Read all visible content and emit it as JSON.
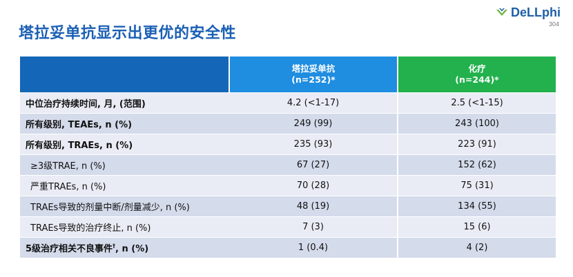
{
  "page": {
    "title": "塔拉妥单抗显示出更优的安全性",
    "logo_text": "DeLLphi",
    "page_number": "304"
  },
  "table": {
    "header": {
      "col1": "",
      "col2_name": "塔拉妥单抗",
      "col2_n": "(n=252)*",
      "col3_name": "化疗",
      "col3_n": "(n=244)*"
    },
    "rows": [
      {
        "label": "中位治疗持续时间, 月, (范围)",
        "drug": "4.2 (<1-17)",
        "chemo": "2.5 (<1-15)"
      },
      {
        "label": "所有级别, TEAEs, n (%)",
        "drug": "249 (99)",
        "chemo": "243 (100)"
      },
      {
        "label": "所有级别, TRAEs, n (%)",
        "drug": "235 (93)",
        "chemo": "223 (91)"
      },
      {
        "label": "≥3级TRAE, n (%)",
        "drug": "67 (27)",
        "chemo": "152 (62)"
      },
      {
        "label": "严重TRAEs, n (%)",
        "drug": "70 (28)",
        "chemo": "75 (31)"
      },
      {
        "label": "TRAEs导致的剂量中断/剂量减少, n (%)",
        "drug": "48 (19)",
        "chemo": "134 (55)"
      },
      {
        "label": "TRAEs导致的治疗终止, n (%)",
        "drug": "7 (3)",
        "chemo": "15 (6)"
      },
      {
        "label_main": "5级治疗相关不良事件",
        "label_sup": "†",
        "label_tail": ", n (%)",
        "drug": "1 (0.4)",
        "chemo": "4 (2)"
      }
    ]
  },
  "colors": {
    "title": "#1a5fb4",
    "header_blank": "#1467b8",
    "header_drug": "#1f8de0",
    "header_chemo": "#22b14c",
    "row_odd": "#e9ecf4",
    "row_even": "#d4dbeb"
  }
}
